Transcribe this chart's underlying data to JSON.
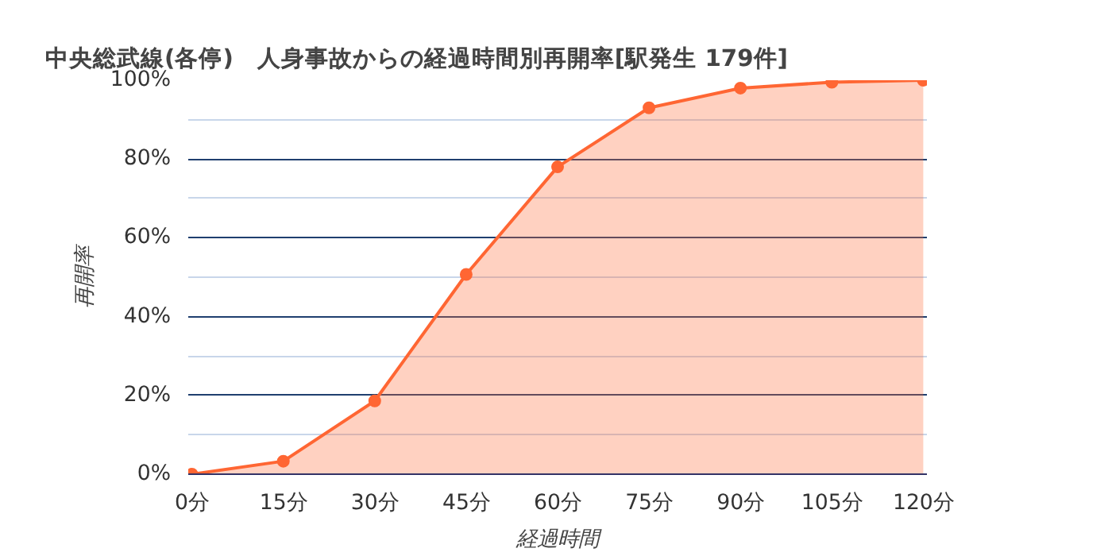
{
  "chart_data": {
    "type": "area",
    "title": "中央総武線(各停)　人身事故からの経過時間別再開率[駅発生 179件]",
    "xlabel": "経過時間",
    "ylabel": "再開率",
    "categories": [
      "0分",
      "15分",
      "30分",
      "45分",
      "60分",
      "75分",
      "90分",
      "105分",
      "120分"
    ],
    "series": [
      {
        "color": "#ff6633",
        "values": [
          0,
          3.3,
          18.6,
          50.7,
          78,
          93,
          98,
          99.5,
          100
        ]
      }
    ],
    "ylim": [
      0,
      100
    ],
    "yticks": [
      {
        "value": 0,
        "label": "0%"
      },
      {
        "value": 10,
        "label": null
      },
      {
        "value": 20,
        "label": "20%"
      },
      {
        "value": 30,
        "label": null
      },
      {
        "value": 40,
        "label": "40%"
      },
      {
        "value": 50,
        "label": null
      },
      {
        "value": 60,
        "label": "60%"
      },
      {
        "value": 70,
        "label": null
      },
      {
        "value": 80,
        "label": "80%"
      },
      {
        "value": 90,
        "label": null
      },
      {
        "value": 100,
        "label": "100%"
      }
    ],
    "grid": "y",
    "marker": "circle",
    "line_style": "solid"
  }
}
